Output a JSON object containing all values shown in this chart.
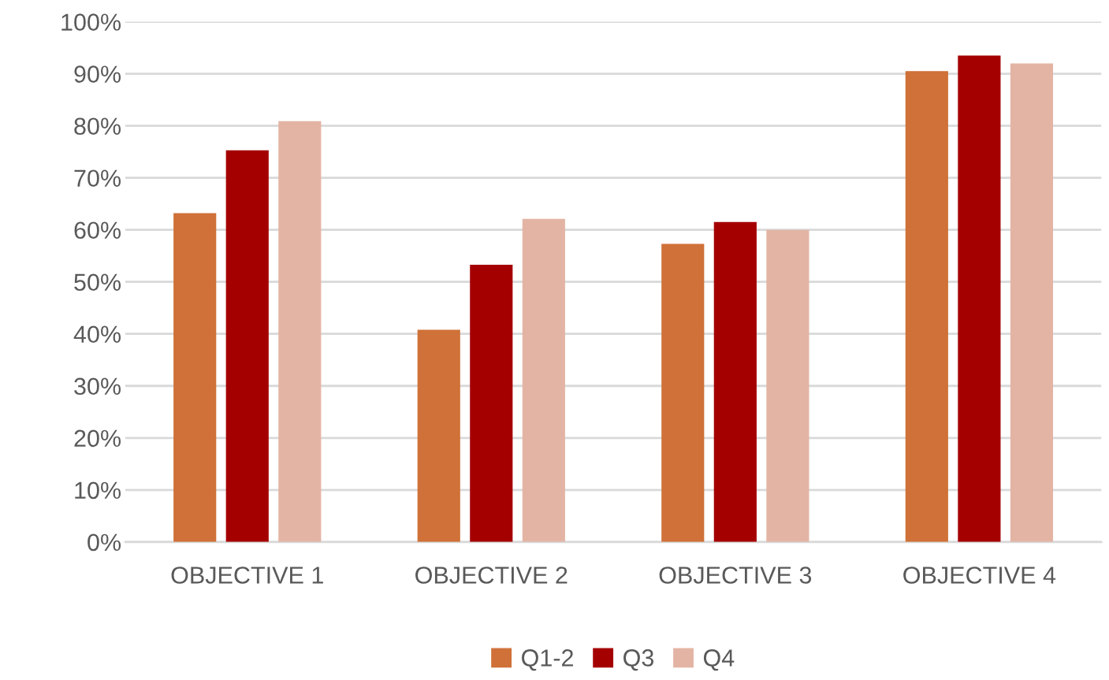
{
  "chart_data": {
    "type": "bar",
    "categories": [
      "OBJECTIVE 1",
      "OBJECTIVE 2",
      "OBJECTIVE 3",
      "OBJECTIVE 4"
    ],
    "series": [
      {
        "name": "Q1-2",
        "color": "#cf7138",
        "values": [
          63.2,
          40.8,
          57.3,
          90.5
        ]
      },
      {
        "name": "Q3",
        "color": "#a50000",
        "values": [
          75.3,
          53.3,
          61.5,
          93.5
        ]
      },
      {
        "name": "Q4",
        "color": "#e3b4a4",
        "values": [
          80.9,
          62.1,
          60.0,
          92.0
        ]
      }
    ],
    "ylim": [
      0,
      100
    ],
    "yticks": [
      {
        "value": 0,
        "label": "0%"
      },
      {
        "value": 10,
        "label": "10%"
      },
      {
        "value": 20,
        "label": "20%"
      },
      {
        "value": 30,
        "label": "30%"
      },
      {
        "value": 40,
        "label": "40%"
      },
      {
        "value": 50,
        "label": "50%"
      },
      {
        "value": 60,
        "label": "60%"
      },
      {
        "value": 70,
        "label": "70%"
      },
      {
        "value": 80,
        "label": "80%"
      },
      {
        "value": 90,
        "label": "90%"
      },
      {
        "value": 100,
        "label": "100%"
      }
    ],
    "grid": "y",
    "legend": "bottom"
  }
}
